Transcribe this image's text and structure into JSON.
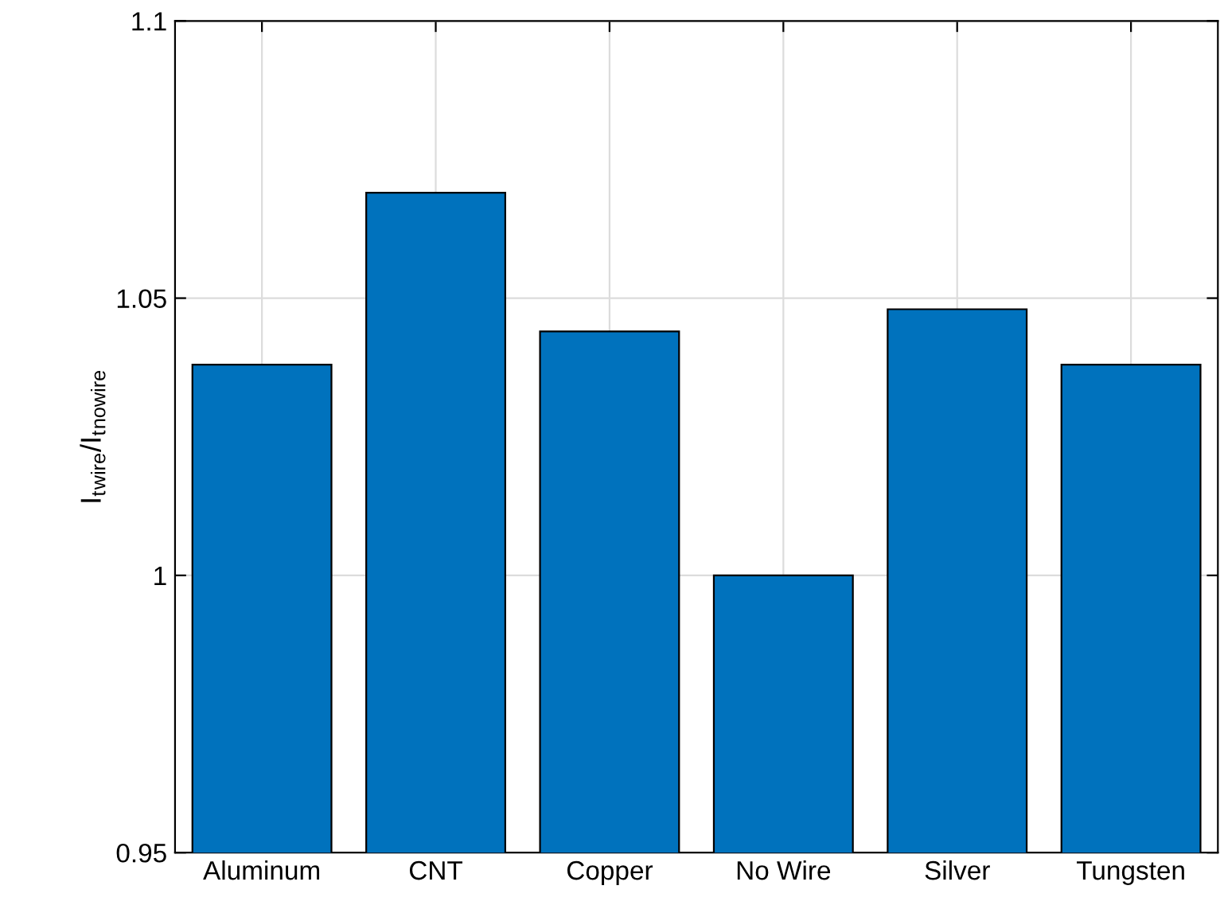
{
  "chart_data": {
    "type": "bar",
    "ylabel": "I$_{t}$$_{wire}$/I$_{t}$$_{nowire}$",
    "categories": [
      "Aluminum",
      "CNT",
      "Copper",
      "No Wire",
      "Silver",
      "Tungsten"
    ],
    "values": [
      1.038,
      1.069,
      1.044,
      1.0,
      1.048,
      1.038
    ],
    "color": "#0072bd",
    "ylim": [
      0.95,
      1.1
    ],
    "yticks": [
      0.95,
      1,
      1.05,
      1.1
    ],
    "grid": true,
    "legend": false
  }
}
